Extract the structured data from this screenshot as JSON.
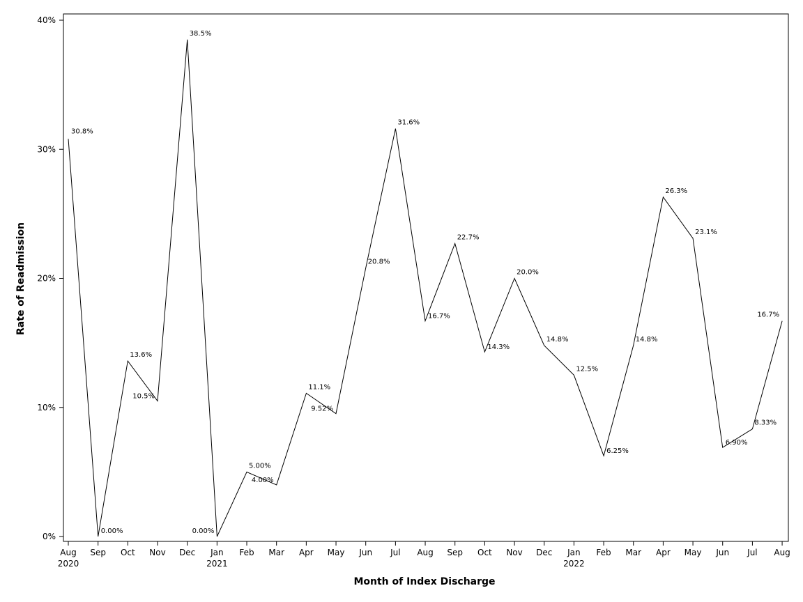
{
  "chart_data": {
    "type": "line",
    "title": "",
    "xlabel": "Month of Index Discharge",
    "ylabel": "Rate of Readmission",
    "ylim": [
      0,
      40
    ],
    "yticks": [
      "0%",
      "10%",
      "20%",
      "30%",
      "40%"
    ],
    "grid": false,
    "legend": "none",
    "line_color": "#000000",
    "x": [
      "Aug 2020",
      "Sep 2020",
      "Oct 2020",
      "Nov 2020",
      "Dec 2020",
      "Jan 2021",
      "Feb 2021",
      "Mar 2021",
      "Apr 2021",
      "May 2021",
      "Jun 2021",
      "Jul 2021",
      "Aug 2021",
      "Sep 2021",
      "Oct 2021",
      "Nov 2021",
      "Dec 2021",
      "Jan 2022",
      "Feb 2022",
      "Mar 2022",
      "Apr 2022",
      "May 2022",
      "Jun 2022",
      "Jul 2022",
      "Aug 2022"
    ],
    "xtick_month": [
      "Aug",
      "Sep",
      "Oct",
      "Nov",
      "Dec",
      "Jan",
      "Feb",
      "Mar",
      "Apr",
      "May",
      "Jun",
      "Jul",
      "Aug",
      "Sep",
      "Oct",
      "Nov",
      "Dec",
      "Jan",
      "Feb",
      "Mar",
      "Apr",
      "May",
      "Jun",
      "Jul",
      "Aug"
    ],
    "xtick_year": [
      "2020",
      "",
      "",
      "",
      "",
      "2021",
      "",
      "",
      "",
      "",
      "",
      "",
      "",
      "",
      "",
      "",
      "",
      "2022",
      "",
      "",
      "",
      "",
      "",
      "",
      ""
    ],
    "series": [
      {
        "values": [
          30.8,
          0.0,
          13.6,
          10.5,
          38.5,
          0.0,
          5.0,
          4.0,
          11.1,
          9.52,
          20.8,
          31.6,
          16.7,
          22.7,
          14.3,
          20.0,
          14.8,
          12.5,
          6.25,
          14.8,
          26.3,
          23.1,
          6.9,
          8.33,
          16.7
        ],
        "labels": [
          "30.8%",
          "0.00%",
          "13.6%",
          "10.5%",
          "38.5%",
          "0.00%",
          "5.00%",
          "4.00%",
          "11.1%",
          "9.52%",
          "20.8%",
          "31.6%",
          "16.7%",
          "22.7%",
          "14.3%",
          "20.0%",
          "14.8%",
          "12.5%",
          "6.25%",
          "14.8%",
          "26.3%",
          "23.1%",
          "6.90%",
          "8.33%",
          "16.7%"
        ]
      }
    ]
  }
}
